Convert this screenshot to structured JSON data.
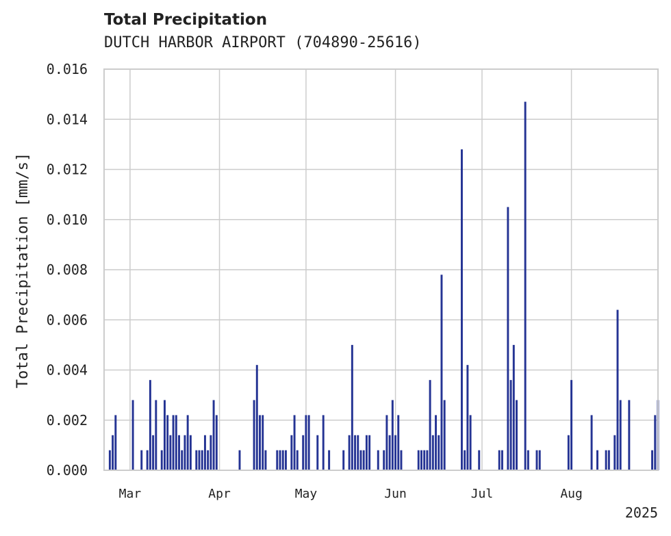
{
  "chart_data": {
    "type": "bar",
    "title": "Total Precipitation",
    "subtitle": "DUTCH HARBOR AIRPORT (704890-25616)",
    "ylabel": "Total Precipitation [mm/s]",
    "xlabel": "",
    "year_label": "2025",
    "ylim": [
      0,
      0.016
    ],
    "yticks": [
      "0.000",
      "0.002",
      "0.004",
      "0.006",
      "0.008",
      "0.010",
      "0.012",
      "0.014",
      "0.016"
    ],
    "xlim": [
      "2025-02-20",
      "2025-08-31"
    ],
    "xticks": [
      {
        "date": "2025-03-01",
        "label": "Mar"
      },
      {
        "date": "2025-04-01",
        "label": "Apr"
      },
      {
        "date": "2025-05-01",
        "label": "May"
      },
      {
        "date": "2025-06-01",
        "label": "Jun"
      },
      {
        "date": "2025-07-01",
        "label": "Jul"
      },
      {
        "date": "2025-08-01",
        "label": "Aug"
      }
    ],
    "grid": true,
    "bar_color": "#253494",
    "series": [
      {
        "values": [
          [
            "2025-02-22",
            0.0008
          ],
          [
            "2025-02-23",
            0.0014
          ],
          [
            "2025-02-24",
            0.0022
          ],
          [
            "2025-03-02",
            0.0028
          ],
          [
            "2025-03-05",
            0.0008
          ],
          [
            "2025-03-07",
            0.0008
          ],
          [
            "2025-03-08",
            0.0036
          ],
          [
            "2025-03-09",
            0.0014
          ],
          [
            "2025-03-10",
            0.0028
          ],
          [
            "2025-03-12",
            0.0008
          ],
          [
            "2025-03-13",
            0.0028
          ],
          [
            "2025-03-14",
            0.0022
          ],
          [
            "2025-03-15",
            0.0014
          ],
          [
            "2025-03-16",
            0.0022
          ],
          [
            "2025-03-17",
            0.0022
          ],
          [
            "2025-03-18",
            0.0014
          ],
          [
            "2025-03-19",
            0.0008
          ],
          [
            "2025-03-20",
            0.0014
          ],
          [
            "2025-03-21",
            0.0022
          ],
          [
            "2025-03-22",
            0.0014
          ],
          [
            "2025-03-24",
            0.0008
          ],
          [
            "2025-03-25",
            0.0008
          ],
          [
            "2025-03-26",
            0.0008
          ],
          [
            "2025-03-27",
            0.0014
          ],
          [
            "2025-03-28",
            0.0008
          ],
          [
            "2025-03-29",
            0.0014
          ],
          [
            "2025-03-30",
            0.0028
          ],
          [
            "2025-03-31",
            0.0022
          ],
          [
            "2025-04-08",
            0.0008
          ],
          [
            "2025-04-13",
            0.0028
          ],
          [
            "2025-04-14",
            0.0042
          ],
          [
            "2025-04-15",
            0.0022
          ],
          [
            "2025-04-16",
            0.0022
          ],
          [
            "2025-04-17",
            0.0008
          ],
          [
            "2025-04-21",
            0.0008
          ],
          [
            "2025-04-22",
            0.0008
          ],
          [
            "2025-04-23",
            0.0008
          ],
          [
            "2025-04-24",
            0.0008
          ],
          [
            "2025-04-26",
            0.0014
          ],
          [
            "2025-04-27",
            0.0022
          ],
          [
            "2025-04-28",
            0.0008
          ],
          [
            "2025-04-30",
            0.0014
          ],
          [
            "2025-05-01",
            0.0022
          ],
          [
            "2025-05-02",
            0.0022
          ],
          [
            "2025-05-05",
            0.0014
          ],
          [
            "2025-05-07",
            0.0022
          ],
          [
            "2025-05-09",
            0.0008
          ],
          [
            "2025-05-14",
            0.0008
          ],
          [
            "2025-05-16",
            0.0014
          ],
          [
            "2025-05-17",
            0.005
          ],
          [
            "2025-05-18",
            0.0014
          ],
          [
            "2025-05-19",
            0.0014
          ],
          [
            "2025-05-20",
            0.0008
          ],
          [
            "2025-05-21",
            0.0008
          ],
          [
            "2025-05-22",
            0.0014
          ],
          [
            "2025-05-23",
            0.0014
          ],
          [
            "2025-05-26",
            0.0008
          ],
          [
            "2025-05-28",
            0.0008
          ],
          [
            "2025-05-29",
            0.0022
          ],
          [
            "2025-05-30",
            0.0014
          ],
          [
            "2025-05-31",
            0.0028
          ],
          [
            "2025-06-01",
            0.0014
          ],
          [
            "2025-06-02",
            0.0022
          ],
          [
            "2025-06-03",
            0.0008
          ],
          [
            "2025-06-09",
            0.0008
          ],
          [
            "2025-06-10",
            0.0008
          ],
          [
            "2025-06-11",
            0.0008
          ],
          [
            "2025-06-12",
            0.0008
          ],
          [
            "2025-06-13",
            0.0036
          ],
          [
            "2025-06-14",
            0.0014
          ],
          [
            "2025-06-15",
            0.0022
          ],
          [
            "2025-06-16",
            0.0014
          ],
          [
            "2025-06-17",
            0.0078
          ],
          [
            "2025-06-18",
            0.0028
          ],
          [
            "2025-06-24",
            0.0128
          ],
          [
            "2025-06-25",
            0.0008
          ],
          [
            "2025-06-26",
            0.0042
          ],
          [
            "2025-06-27",
            0.0022
          ],
          [
            "2025-06-30",
            0.0008
          ],
          [
            "2025-07-07",
            0.0008
          ],
          [
            "2025-07-08",
            0.0008
          ],
          [
            "2025-07-10",
            0.0105
          ],
          [
            "2025-07-11",
            0.0036
          ],
          [
            "2025-07-12",
            0.005
          ],
          [
            "2025-07-13",
            0.0028
          ],
          [
            "2025-07-16",
            0.0147
          ],
          [
            "2025-07-17",
            0.0008
          ],
          [
            "2025-07-20",
            0.0008
          ],
          [
            "2025-07-21",
            0.0008
          ],
          [
            "2025-07-31",
            0.0014
          ],
          [
            "2025-08-01",
            0.0036
          ],
          [
            "2025-08-08",
            0.0022
          ],
          [
            "2025-08-10",
            0.0008
          ],
          [
            "2025-08-13",
            0.0008
          ],
          [
            "2025-08-14",
            0.0008
          ],
          [
            "2025-08-16",
            0.0014
          ],
          [
            "2025-08-17",
            0.0064
          ],
          [
            "2025-08-18",
            0.0028
          ],
          [
            "2025-08-21",
            0.0028
          ],
          [
            "2025-08-29",
            0.0008
          ],
          [
            "2025-08-30",
            0.0022
          ],
          [
            "2025-08-31",
            0.0028
          ]
        ]
      }
    ]
  }
}
